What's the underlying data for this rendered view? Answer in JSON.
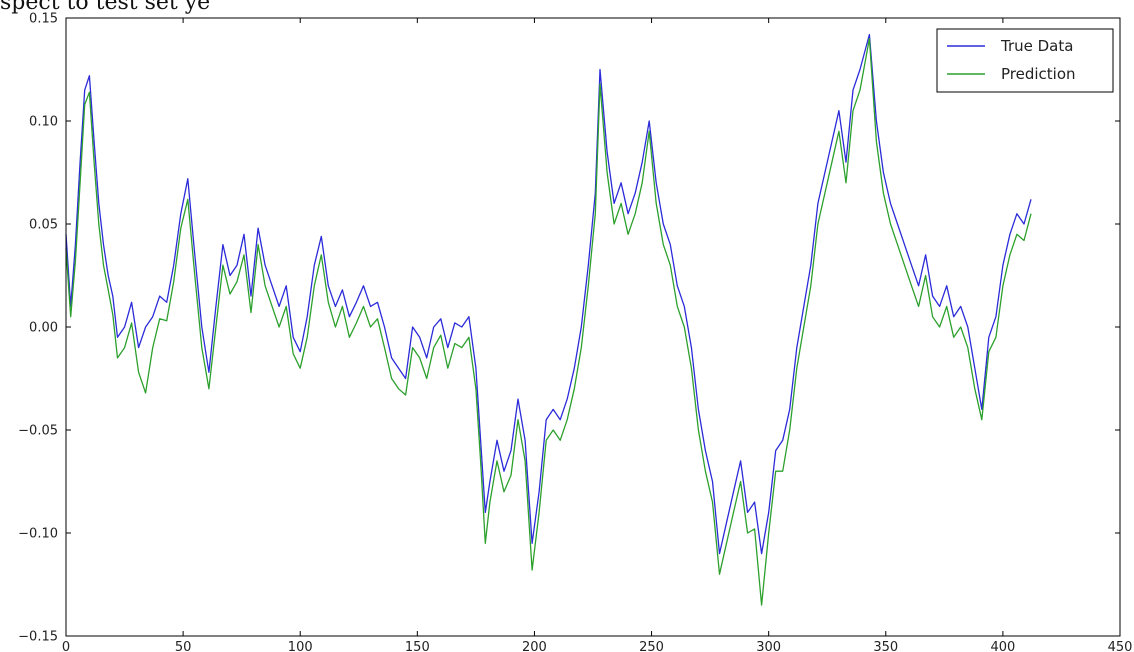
{
  "header": {
    "cut_text": "spect to test set ye"
  },
  "chart_data": {
    "type": "line",
    "title": "",
    "xlabel": "",
    "ylabel": "",
    "xlim": [
      0,
      450
    ],
    "ylim": [
      -0.15,
      0.15
    ],
    "xticks": [
      0,
      50,
      100,
      150,
      200,
      250,
      300,
      350,
      400,
      450
    ],
    "yticks": [
      -0.15,
      -0.1,
      -0.05,
      0.0,
      0.05,
      0.1,
      0.15
    ],
    "xtick_labels": [
      "0",
      "50",
      "100",
      "150",
      "200",
      "250",
      "300",
      "350",
      "400",
      "450"
    ],
    "ytick_labels": [
      "−0.15",
      "−0.10",
      "−0.05",
      "0.00",
      "0.05",
      "0.10",
      "0.15"
    ],
    "grid": false,
    "legend_position": "top-right",
    "series": [
      {
        "name": "True Data",
        "color": "#2b2bd9",
        "x": [
          0,
          2,
          4,
          6,
          8,
          10,
          12,
          14,
          16,
          18,
          20,
          22,
          25,
          28,
          31,
          34,
          37,
          40,
          43,
          46,
          49,
          52,
          55,
          58,
          61,
          64,
          67,
          70,
          73,
          76,
          79,
          82,
          85,
          88,
          91,
          94,
          97,
          100,
          103,
          106,
          109,
          112,
          115,
          118,
          121,
          124,
          127,
          130,
          133,
          136,
          139,
          142,
          145,
          148,
          151,
          154,
          157,
          160,
          163,
          166,
          169,
          172,
          175,
          177,
          179,
          181,
          184,
          187,
          190,
          193,
          196,
          199,
          202,
          205,
          208,
          211,
          214,
          217,
          220,
          223,
          226,
          228,
          231,
          234,
          237,
          240,
          243,
          246,
          249,
          252,
          255,
          258,
          261,
          264,
          267,
          270,
          273,
          276,
          279,
          282,
          285,
          288,
          291,
          294,
          297,
          300,
          303,
          306,
          309,
          312,
          315,
          318,
          321,
          324,
          327,
          330,
          333,
          336,
          339,
          343,
          346,
          349,
          352,
          355,
          358,
          361,
          364,
          367,
          370,
          373,
          376,
          379,
          382,
          385,
          388,
          391,
          394,
          397,
          400,
          403,
          406,
          409,
          412
        ],
        "y": [
          0.045,
          0.01,
          0.04,
          0.08,
          0.115,
          0.122,
          0.09,
          0.06,
          0.04,
          0.025,
          0.015,
          -0.005,
          0.0,
          0.012,
          -0.01,
          0.0,
          0.005,
          0.015,
          0.012,
          0.03,
          0.055,
          0.072,
          0.035,
          0.0,
          -0.022,
          0.01,
          0.04,
          0.025,
          0.03,
          0.045,
          0.015,
          0.048,
          0.03,
          0.02,
          0.01,
          0.02,
          -0.005,
          -0.012,
          0.005,
          0.03,
          0.044,
          0.02,
          0.01,
          0.018,
          0.005,
          0.012,
          0.02,
          0.01,
          0.012,
          0.0,
          -0.015,
          -0.02,
          -0.025,
          0.0,
          -0.005,
          -0.015,
          0.0,
          0.004,
          -0.01,
          0.002,
          0.0,
          0.005,
          -0.02,
          -0.055,
          -0.09,
          -0.075,
          -0.055,
          -0.07,
          -0.06,
          -0.035,
          -0.055,
          -0.105,
          -0.08,
          -0.045,
          -0.04,
          -0.045,
          -0.035,
          -0.02,
          0.0,
          0.03,
          0.065,
          0.125,
          0.085,
          0.06,
          0.07,
          0.055,
          0.065,
          0.08,
          0.1,
          0.07,
          0.05,
          0.04,
          0.02,
          0.01,
          -0.01,
          -0.04,
          -0.06,
          -0.075,
          -0.11,
          -0.095,
          -0.08,
          -0.065,
          -0.09,
          -0.085,
          -0.11,
          -0.09,
          -0.06,
          -0.055,
          -0.04,
          -0.01,
          0.01,
          0.03,
          0.06,
          0.075,
          0.09,
          0.105,
          0.08,
          0.115,
          0.125,
          0.142,
          0.1,
          0.075,
          0.06,
          0.05,
          0.04,
          0.03,
          0.02,
          0.035,
          0.015,
          0.01,
          0.02,
          0.005,
          0.01,
          0.0,
          -0.02,
          -0.04,
          -0.005,
          0.005,
          0.03,
          0.045,
          0.055,
          0.05,
          0.062
        ]
      },
      {
        "name": "Prediction",
        "color": "#2ca02c",
        "x": [
          0,
          2,
          4,
          6,
          8,
          10,
          12,
          14,
          16,
          18,
          20,
          22,
          25,
          28,
          31,
          34,
          37,
          40,
          43,
          46,
          49,
          52,
          55,
          58,
          61,
          64,
          67,
          70,
          73,
          76,
          79,
          82,
          85,
          88,
          91,
          94,
          97,
          100,
          103,
          106,
          109,
          112,
          115,
          118,
          121,
          124,
          127,
          130,
          133,
          136,
          139,
          142,
          145,
          148,
          151,
          154,
          157,
          160,
          163,
          166,
          169,
          172,
          175,
          177,
          179,
          181,
          184,
          187,
          190,
          193,
          196,
          199,
          202,
          205,
          208,
          211,
          214,
          217,
          220,
          223,
          226,
          228,
          231,
          234,
          237,
          240,
          243,
          246,
          249,
          252,
          255,
          258,
          261,
          264,
          267,
          270,
          273,
          276,
          279,
          282,
          285,
          288,
          291,
          294,
          297,
          300,
          303,
          306,
          309,
          312,
          315,
          318,
          321,
          324,
          327,
          330,
          333,
          336,
          339,
          343,
          346,
          349,
          352,
          355,
          358,
          361,
          364,
          367,
          370,
          373,
          376,
          379,
          382,
          385,
          388,
          391,
          394,
          397,
          400,
          403,
          406,
          409,
          412
        ],
        "y": [
          0.038,
          0.005,
          0.032,
          0.07,
          0.108,
          0.114,
          0.08,
          0.05,
          0.03,
          0.018,
          0.006,
          -0.015,
          -0.01,
          0.002,
          -0.022,
          -0.032,
          -0.01,
          0.004,
          0.003,
          0.022,
          0.048,
          0.062,
          0.025,
          -0.01,
          -0.03,
          0.0,
          0.03,
          0.016,
          0.022,
          0.035,
          0.007,
          0.04,
          0.02,
          0.01,
          0.0,
          0.01,
          -0.013,
          -0.02,
          -0.005,
          0.02,
          0.035,
          0.012,
          0.0,
          0.01,
          -0.005,
          0.002,
          0.01,
          0.0,
          0.004,
          -0.01,
          -0.025,
          -0.03,
          -0.033,
          -0.01,
          -0.015,
          -0.025,
          -0.01,
          -0.004,
          -0.02,
          -0.008,
          -0.01,
          -0.005,
          -0.03,
          -0.065,
          -0.105,
          -0.085,
          -0.065,
          -0.08,
          -0.072,
          -0.045,
          -0.065,
          -0.118,
          -0.09,
          -0.055,
          -0.05,
          -0.055,
          -0.045,
          -0.03,
          -0.01,
          0.02,
          0.055,
          0.118,
          0.075,
          0.05,
          0.06,
          0.045,
          0.055,
          0.07,
          0.095,
          0.06,
          0.04,
          0.03,
          0.01,
          0.0,
          -0.02,
          -0.05,
          -0.07,
          -0.085,
          -0.12,
          -0.105,
          -0.09,
          -0.075,
          -0.1,
          -0.098,
          -0.135,
          -0.1,
          -0.07,
          -0.07,
          -0.05,
          -0.02,
          0.0,
          0.02,
          0.05,
          0.065,
          0.08,
          0.095,
          0.07,
          0.105,
          0.115,
          0.14,
          0.09,
          0.065,
          0.05,
          0.04,
          0.03,
          0.02,
          0.01,
          0.025,
          0.005,
          0.0,
          0.01,
          -0.005,
          0.0,
          -0.01,
          -0.03,
          -0.045,
          -0.012,
          -0.005,
          0.02,
          0.035,
          0.045,
          0.042,
          0.055
        ]
      }
    ]
  }
}
